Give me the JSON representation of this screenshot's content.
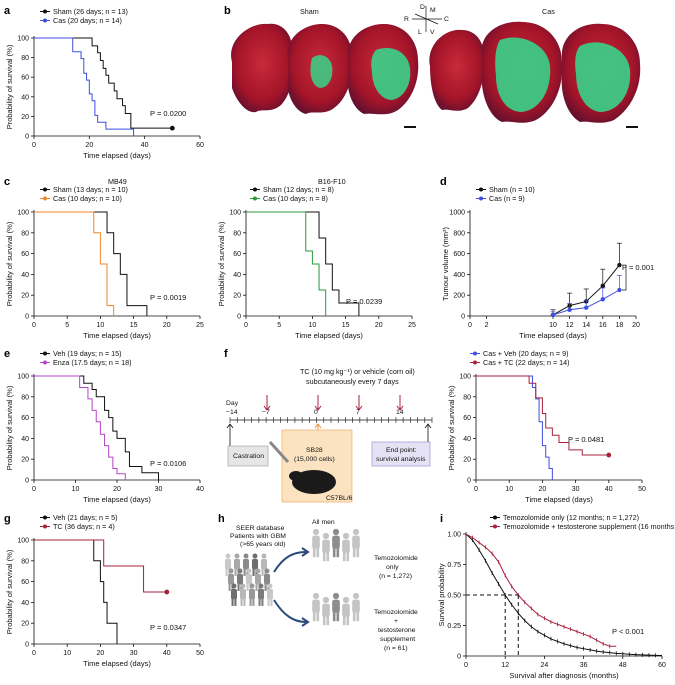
{
  "colors": {
    "black": "#111111",
    "blue": "#3c4fe0",
    "orange": "#f0872a",
    "green": "#2a9a3a",
    "purple": "#b346c8",
    "maroon": "#a8203c",
    "brain_red": "#b0172c",
    "brain_green": "#37d38a"
  },
  "panels": {
    "a": {
      "label": "a"
    },
    "b": {
      "label": "b",
      "sham": "Sham",
      "cas": "Cas",
      "axes": {
        "d": "D",
        "m": "M",
        "r": "R",
        "c": "C",
        "l": "L",
        "v": "V"
      }
    },
    "c": {
      "label": "c"
    },
    "d": {
      "label": "d"
    },
    "e": {
      "label": "e"
    },
    "f": {
      "label": "f",
      "dose_line1": "TC (10 mg kg⁻¹) or vehicle (corn oil)",
      "dose_line2": "subcutaneously every 7 days",
      "day_label": "Day",
      "days": [
        "−14",
        "−7",
        "0",
        "7",
        "14"
      ],
      "castration": "Castration",
      "sb28_line1": "SB28",
      "sb28_line2": "(15,000 cells)",
      "endpoint_line1": "End point:",
      "endpoint_line2": "survival analysis",
      "mouse": "C57BL/6"
    },
    "g": {
      "label": "g"
    },
    "h": {
      "label": "h",
      "seer_line1": "SEER database",
      "seer_line2": "Patients with GBM",
      "seer_line3": "(>65 years old)",
      "all_men": "All men",
      "tmz_line1": "Temozolomide",
      "tmz_line2": "only",
      "tmz_line3": "(n = 1,272)",
      "tmzt_line1": "Temozolomide",
      "tmzt_line2": "+",
      "tmzt_line3": "testosterone",
      "tmzt_line4": "supplement",
      "tmzt_line5": "(n = 61)"
    },
    "i": {
      "label": "i"
    }
  },
  "chart_data": [
    {
      "id": "a",
      "type": "line",
      "xlabel": "Time elapsed (days)",
      "ylabel": "Probability of survival (%)",
      "xlim": [
        0,
        60
      ],
      "ylim": [
        0,
        100
      ],
      "xticks": [
        0,
        20,
        40,
        60
      ],
      "yticks": [
        0,
        20,
        40,
        60,
        80,
        100
      ],
      "pvalue": "P = 0.0200",
      "series": [
        {
          "name": "Sham (26 days; n = 13)",
          "color": "#111111",
          "x": [
            0,
            21,
            21,
            23,
            23,
            24,
            24,
            25,
            25,
            26,
            26,
            27,
            27,
            29,
            29,
            30,
            30,
            32,
            32,
            33,
            33,
            35,
            35,
            50
          ],
          "y": [
            100,
            100,
            92,
            92,
            85,
            85,
            77,
            77,
            69,
            69,
            62,
            62,
            54,
            54,
            46,
            46,
            38,
            38,
            31,
            31,
            23,
            23,
            8,
            8
          ],
          "end_dot": [
            50,
            8
          ]
        },
        {
          "name": "Cas (20 days; n = 14)",
          "color": "#3c4fe0",
          "x": [
            0,
            14,
            14,
            17,
            17,
            18,
            18,
            19,
            19,
            20,
            20,
            21,
            21,
            22,
            22,
            23,
            23,
            26,
            26,
            36,
            36
          ],
          "y": [
            100,
            100,
            86,
            86,
            79,
            79,
            64,
            64,
            57,
            57,
            43,
            43,
            36,
            36,
            21,
            21,
            14,
            14,
            7,
            7,
            0
          ]
        }
      ]
    },
    {
      "id": "c1",
      "type": "line",
      "title": "MB49",
      "xlabel": "Time elapsed (days)",
      "ylabel": "Probability of survival (%)",
      "xlim": [
        0,
        25
      ],
      "ylim": [
        0,
        100
      ],
      "xticks": [
        0,
        5,
        10,
        15,
        20,
        25
      ],
      "yticks": [
        0,
        20,
        40,
        60,
        80,
        100
      ],
      "pvalue": "P = 0.0019",
      "series": [
        {
          "name": "Sham (13 days; n = 10)",
          "color": "#111111",
          "x": [
            0,
            11,
            11,
            12,
            12,
            13,
            13,
            14,
            14,
            17,
            17
          ],
          "y": [
            100,
            100,
            80,
            80,
            60,
            60,
            40,
            40,
            10,
            10,
            0
          ]
        },
        {
          "name": "Cas (10 days; n = 10)",
          "color": "#f0872a",
          "x": [
            0,
            9,
            9,
            10,
            10,
            11,
            11,
            12,
            12
          ],
          "y": [
            100,
            100,
            80,
            80,
            50,
            50,
            10,
            10,
            0
          ]
        }
      ]
    },
    {
      "id": "c2",
      "type": "line",
      "title": "B16-F10",
      "xlabel": "Time elapsed (days)",
      "ylabel": "Probability of survival (%)",
      "xlim": [
        0,
        25
      ],
      "ylim": [
        0,
        100
      ],
      "xticks": [
        0,
        5,
        10,
        15,
        20,
        25
      ],
      "yticks": [
        0,
        20,
        40,
        60,
        80,
        100
      ],
      "pvalue": "P = 0.0239",
      "series": [
        {
          "name": "Sham (12 days; n = 8)",
          "color": "#111111",
          "x": [
            0,
            11,
            11,
            12,
            12,
            13,
            13,
            14,
            14,
            17,
            17
          ],
          "y": [
            100,
            100,
            75,
            75,
            50,
            50,
            25,
            25,
            12.5,
            12.5,
            0
          ]
        },
        {
          "name": "Cas (10 days; n = 8)",
          "color": "#2a9a3a",
          "x": [
            0,
            9,
            9,
            10,
            10,
            11,
            11,
            12,
            12
          ],
          "y": [
            100,
            100,
            62.5,
            62.5,
            50,
            50,
            25,
            25,
            0
          ]
        }
      ]
    },
    {
      "id": "d",
      "type": "line",
      "xlabel": "Time elapsed (days)",
      "ylabel": "Tumour volume (mm³)",
      "xlim": [
        0,
        20
      ],
      "ylim": [
        0,
        1000
      ],
      "xticks": [
        0,
        2,
        10,
        12,
        14,
        16,
        18,
        20
      ],
      "yticks": [
        0,
        200,
        400,
        600,
        800,
        1000
      ],
      "pvalue": "P = 0.001",
      "series": [
        {
          "name": "Sham (n = 10)",
          "color": "#111111",
          "x": [
            10,
            12,
            14,
            16,
            18
          ],
          "y": [
            10,
            100,
            140,
            290,
            490
          ],
          "err": [
            50,
            120,
            120,
            160,
            210
          ]
        },
        {
          "name": "Cas (n = 9)",
          "color": "#3c4fe0",
          "x": [
            10,
            12,
            14,
            16,
            18
          ],
          "y": [
            10,
            60,
            80,
            160,
            250
          ],
          "err": [
            30,
            60,
            70,
            110,
            140
          ]
        }
      ]
    },
    {
      "id": "e",
      "type": "line",
      "xlabel": "Time elapsed (days)",
      "ylabel": "Probability of survival (%)",
      "xlim": [
        0,
        40
      ],
      "ylim": [
        0,
        100
      ],
      "xticks": [
        0,
        10,
        20,
        30,
        40
      ],
      "yticks": [
        0,
        20,
        40,
        60,
        80,
        100
      ],
      "pvalue": "P = 0.0106",
      "series": [
        {
          "name": "Veh (19 days; n = 15)",
          "color": "#111111",
          "x": [
            0,
            12,
            12,
            14,
            14,
            15,
            15,
            17,
            17,
            18,
            18,
            19,
            19,
            20,
            20,
            22,
            22,
            23,
            23,
            26,
            26,
            30,
            30
          ],
          "y": [
            100,
            100,
            93,
            93,
            87,
            87,
            80,
            80,
            67,
            67,
            60,
            60,
            47,
            47,
            40,
            40,
            27,
            27,
            13,
            13,
            7,
            7,
            0
          ]
        },
        {
          "name": "Enza (17.5 days; n = 18)",
          "color": "#b346c8",
          "x": [
            0,
            11,
            11,
            13,
            13,
            14,
            14,
            15,
            15,
            16,
            16,
            17,
            17,
            18,
            18,
            19,
            19,
            20,
            20,
            22,
            22
          ],
          "y": [
            100,
            100,
            89,
            89,
            78,
            78,
            67,
            67,
            56,
            56,
            44,
            44,
            33,
            33,
            22,
            22,
            11,
            11,
            6,
            6,
            0
          ]
        }
      ]
    },
    {
      "id": "f",
      "type": "line",
      "xlabel": "Time elapsed (days)",
      "ylabel": "Probability of survival (%)",
      "xlim": [
        0,
        50
      ],
      "ylim": [
        0,
        100
      ],
      "xticks": [
        0,
        10,
        20,
        30,
        40,
        50
      ],
      "yticks": [
        0,
        20,
        40,
        60,
        80,
        100
      ],
      "pvalue": "P = 0.0481",
      "series": [
        {
          "name": "Cas + Veh (20 days; n = 9)",
          "color": "#3c4fe0",
          "x": [
            0,
            17,
            17,
            18,
            18,
            19,
            19,
            20,
            20,
            21,
            21,
            22,
            22,
            23,
            23
          ],
          "y": [
            100,
            100,
            89,
            89,
            78,
            78,
            56,
            56,
            33,
            33,
            22,
            22,
            11,
            11,
            0
          ]
        },
        {
          "name": "Cas + TC (22 days; n = 14)",
          "color": "#a8203c",
          "x": [
            0,
            16,
            16,
            18,
            18,
            20,
            20,
            21,
            21,
            23,
            23,
            25,
            25,
            28,
            28,
            32,
            32,
            40
          ],
          "y": [
            100,
            100,
            93,
            93,
            79,
            79,
            64,
            64,
            50,
            50,
            43,
            43,
            36,
            36,
            29,
            29,
            24,
            24
          ],
          "end_dot": [
            40,
            24
          ]
        }
      ]
    },
    {
      "id": "g",
      "type": "line",
      "xlabel": "Time elapsed (days)",
      "ylabel": "Probability of survival (%)",
      "xlim": [
        0,
        50
      ],
      "ylim": [
        0,
        100
      ],
      "xticks": [
        0,
        10,
        20,
        30,
        40,
        50
      ],
      "yticks": [
        0,
        20,
        40,
        60,
        80,
        100
      ],
      "pvalue": "P = 0.0347",
      "series": [
        {
          "name": "Veh (21 days; n = 5)",
          "color": "#111111",
          "x": [
            0,
            18,
            18,
            20,
            20,
            21,
            21,
            22,
            22,
            25,
            25
          ],
          "y": [
            100,
            100,
            80,
            80,
            60,
            60,
            40,
            40,
            20,
            20,
            0
          ]
        },
        {
          "name": "TC (36 days; n = 4)",
          "color": "#a8203c",
          "x": [
            0,
            21,
            21,
            33,
            33,
            40
          ],
          "y": [
            100,
            100,
            75,
            75,
            50,
            50
          ],
          "end_dot": [
            40,
            50
          ]
        }
      ]
    },
    {
      "id": "i",
      "type": "line",
      "xlabel": "Survival after diagnosis (months)",
      "ylabel": "Survival probability",
      "xlim": [
        0,
        60
      ],
      "ylim": [
        0,
        1
      ],
      "xticks": [
        0,
        12,
        24,
        36,
        48,
        60
      ],
      "yticks": [
        "0",
        "0.25",
        "0.50",
        "0.75",
        "1.00"
      ],
      "pvalue": "P < 0.001",
      "medians": [
        12,
        16
      ],
      "series": [
        {
          "name": "Temozolomide only (12 months; n = 1,272)",
          "color": "#111111",
          "x": [
            0,
            2,
            4,
            6,
            8,
            10,
            12,
            14,
            16,
            18,
            20,
            22,
            24,
            26,
            28,
            30,
            32,
            34,
            36,
            38,
            40,
            42,
            44,
            46,
            48,
            50,
            52,
            54,
            56,
            58,
            60
          ],
          "y": [
            1.0,
            0.95,
            0.87,
            0.78,
            0.68,
            0.59,
            0.5,
            0.42,
            0.35,
            0.29,
            0.24,
            0.2,
            0.17,
            0.14,
            0.12,
            0.1,
            0.085,
            0.07,
            0.06,
            0.05,
            0.04,
            0.033,
            0.028,
            0.022,
            0.018,
            0.014,
            0.011,
            0.009,
            0.007,
            0.005,
            0.004
          ]
        },
        {
          "name": "Temozolomide + testosterone supplement (16 months; n = 61)",
          "color": "#a8203c",
          "x": [
            0,
            2,
            4,
            6,
            8,
            10,
            12,
            14,
            16,
            18,
            20,
            22,
            24,
            26,
            28,
            30,
            32,
            34,
            36,
            38,
            40,
            42,
            44,
            46
          ],
          "y": [
            1.0,
            0.97,
            0.93,
            0.89,
            0.84,
            0.77,
            0.66,
            0.57,
            0.5,
            0.44,
            0.39,
            0.34,
            0.31,
            0.28,
            0.26,
            0.24,
            0.22,
            0.2,
            0.18,
            0.16,
            0.13,
            0.1,
            0.08,
            0.08
          ]
        }
      ]
    }
  ]
}
